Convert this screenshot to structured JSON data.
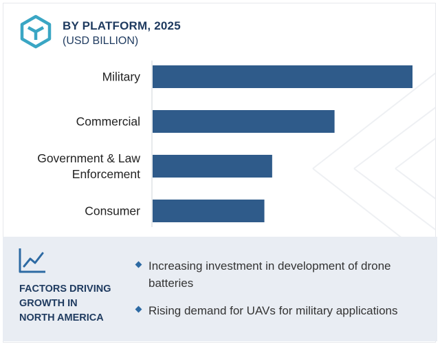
{
  "header": {
    "title": "BY PLATFORM, 2025",
    "subtitle": "(USD BILLION)"
  },
  "chart_data": {
    "type": "bar",
    "orientation": "horizontal",
    "categories": [
      "Military",
      "Commercial",
      "Government & Law Enforcement",
      "Consumer"
    ],
    "category_label_lines": [
      [
        "Military"
      ],
      [
        "Commercial"
      ],
      [
        "Government & Law",
        "Enforcement"
      ],
      [
        "Consumer"
      ]
    ],
    "values": [
      100,
      70,
      46,
      43
    ],
    "value_scale": "relative (no axis printed)",
    "bar_color": "#2f5b8a",
    "xlabel": "",
    "ylabel": ""
  },
  "factors": {
    "icon": "trend-line-icon",
    "title_lines": [
      "FACTORS DRIVING",
      "GROWTH IN",
      "NORTH AMERICA"
    ],
    "items": [
      "Increasing investment in development of drone batteries",
      "Rising demand for UAVs for military applications"
    ]
  },
  "colors": {
    "accent": "#2d6aa3",
    "logo": "#3aa6c4",
    "title": "#1e3a5f",
    "panel_bg": "#e9edf3"
  }
}
